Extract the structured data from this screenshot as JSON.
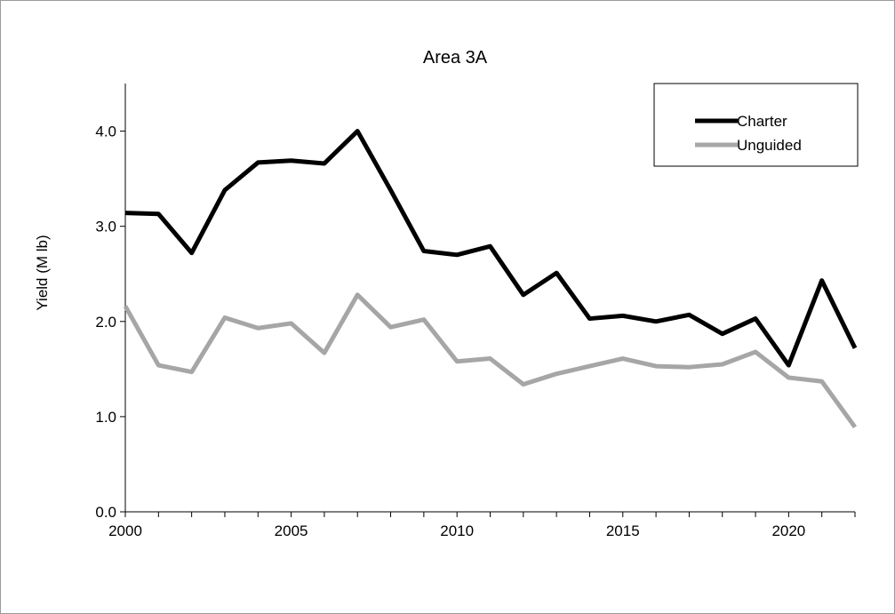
{
  "chart_data": {
    "type": "line",
    "title": "Area 3A",
    "xlabel": "",
    "ylabel": "Yield (M lb)",
    "xlim": [
      2000,
      2022
    ],
    "ylim": [
      0,
      4.5
    ],
    "x_ticks": [
      2000,
      2005,
      2010,
      2015,
      2020
    ],
    "y_ticks": [
      0.0,
      1.0,
      2.0,
      3.0,
      4.0
    ],
    "y_tick_labels": [
      "0.0",
      "1.0",
      "2.0",
      "3.0",
      "4.0"
    ],
    "grid": false,
    "legend_position": "top-right",
    "x": [
      2000,
      2001,
      2002,
      2003,
      2004,
      2005,
      2006,
      2007,
      2008,
      2009,
      2010,
      2011,
      2012,
      2013,
      2014,
      2015,
      2016,
      2017,
      2018,
      2019,
      2020,
      2021,
      2022
    ],
    "series": [
      {
        "name": "Charter",
        "color": "#000000",
        "values": [
          3.14,
          3.13,
          2.72,
          3.38,
          3.67,
          3.69,
          3.66,
          4.0,
          3.38,
          2.74,
          2.7,
          2.79,
          2.28,
          2.51,
          2.03,
          2.06,
          2.0,
          2.07,
          1.87,
          2.03,
          1.54,
          2.43,
          1.72
        ]
      },
      {
        "name": "Unguided",
        "color": "#a6a6a6",
        "values": [
          2.16,
          1.54,
          1.47,
          2.04,
          1.93,
          1.98,
          1.67,
          2.28,
          1.94,
          2.02,
          1.58,
          1.61,
          1.34,
          1.45,
          1.53,
          1.61,
          1.53,
          1.52,
          1.55,
          1.68,
          1.41,
          1.37,
          0.89
        ]
      }
    ]
  }
}
